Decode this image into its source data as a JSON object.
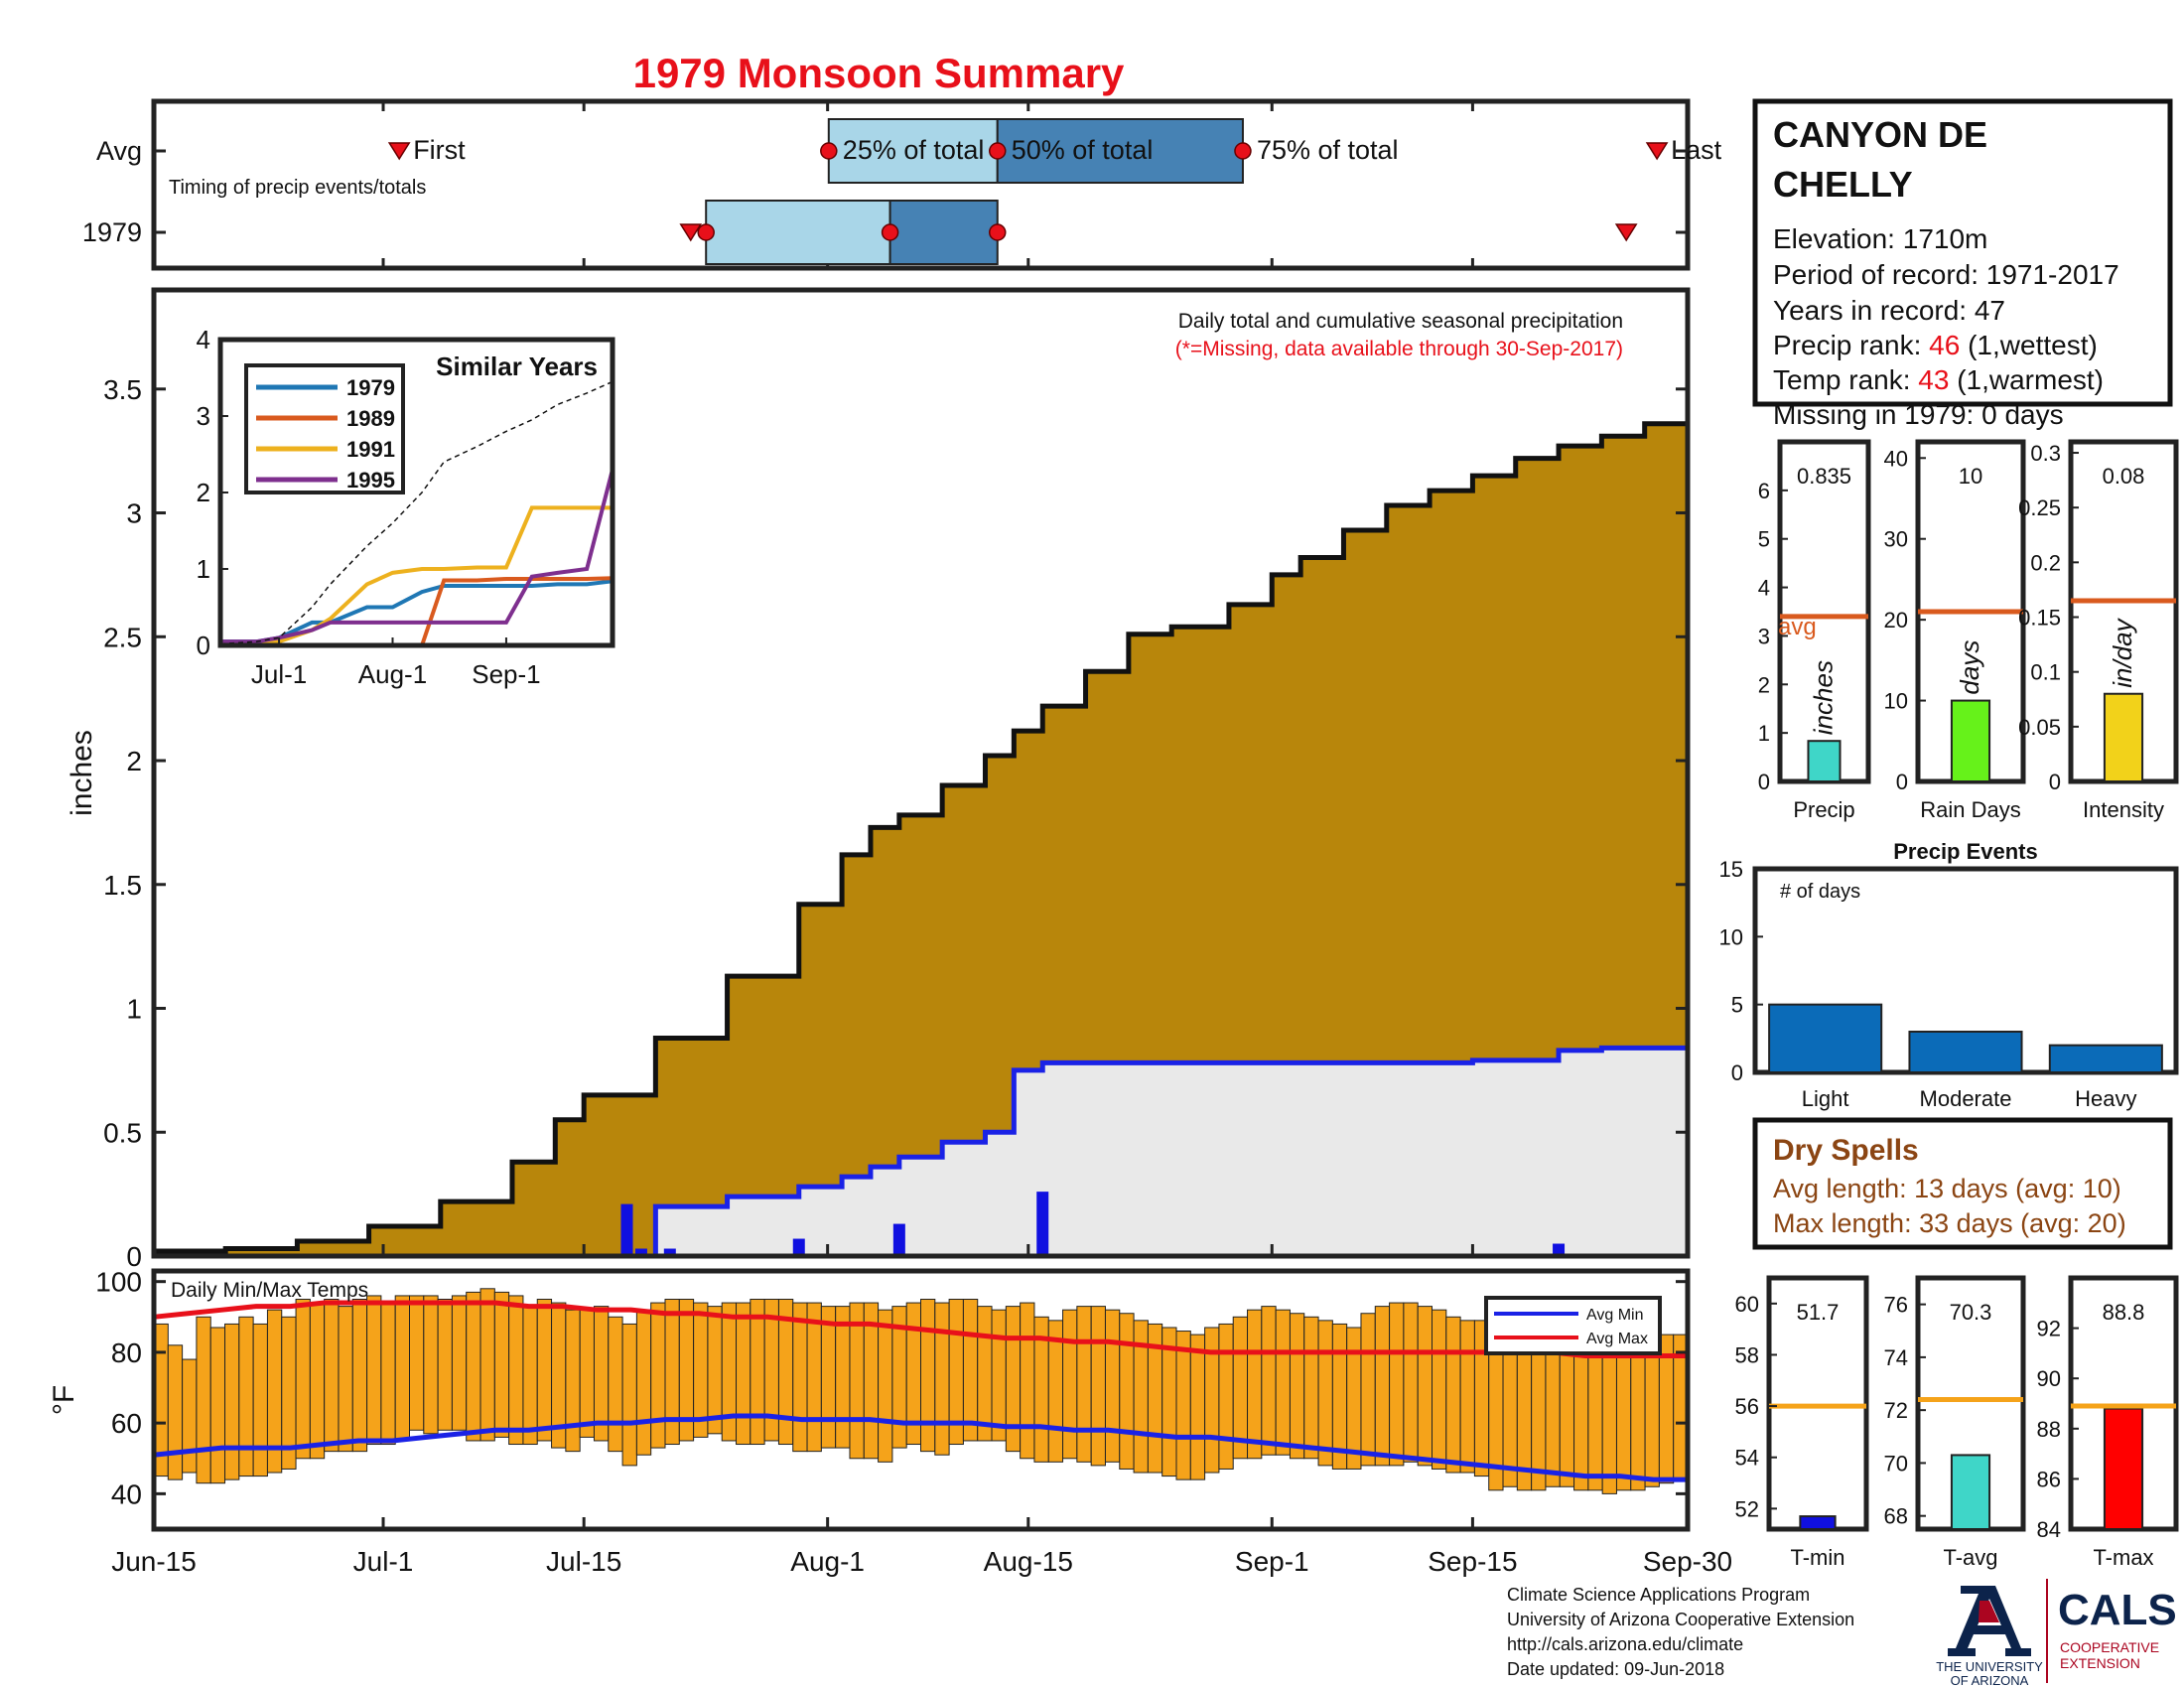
{
  "title": "1979 Monsoon Summary",
  "colors": {
    "title_red": "#e8101a",
    "cumulative_fill": "#b8860b",
    "year_fill": "#e9e9e9",
    "year_line": "#1a22e6",
    "daily_bar": "#1010e0",
    "temp_bar": "#f5a31a",
    "avg_min": "#1a22e6",
    "avg_max": "#e8101a",
    "light_blue": "#a9d6e8",
    "mid_blue": "#4682b4",
    "avg_line_orange": "#d95a1e",
    "temp_avg_orange": "#f5a31a"
  },
  "timing": {
    "row_labels": [
      "Avg",
      "1979"
    ],
    "caption": "Timing of precip events/totals",
    "first_label": "First",
    "last_label": "Last",
    "pct25_label": "25% of total",
    "pct50_label": "50% of total",
    "pct75_label": "75% of total",
    "avg": {
      "first": 16,
      "p25": 44,
      "p50": 55,
      "p75": 71,
      "last": 98
    },
    "y1979": {
      "first": 35,
      "p25": 36,
      "p50": 48,
      "p75": 55,
      "last": 96
    }
  },
  "station": {
    "name_line1": "CANYON DE",
    "name_line2": "CHELLY",
    "elevation": "Elevation: 1710m",
    "period": "Period of record: 1971-2017",
    "years": "Years in record: 47",
    "precip_rank_label": "Precip rank: ",
    "precip_rank_value": "46",
    "precip_rank_note": " (1,wettest)",
    "temp_rank_label": "Temp rank: ",
    "temp_rank_value": "43",
    "temp_rank_note": " (1,warmest)",
    "missing": "Missing in 1979: 0 days"
  },
  "main_chart": {
    "ylabel": "inches",
    "note_line1": "Daily total and cumulative seasonal precipitation",
    "note_line2": "(*=Missing, data available through 30-Sep-2017)",
    "yticks": [
      "0",
      "0.5",
      "1",
      "1.5",
      "2",
      "2.5",
      "3",
      "3.5"
    ],
    "xticks": [
      "Jun-15",
      "Jul-1",
      "Jul-15",
      "Aug-1",
      "Aug-15",
      "Sep-1",
      "Sep-15",
      "Sep-30"
    ],
    "xtick_days": [
      0,
      16,
      30,
      47,
      61,
      78,
      92,
      107
    ],
    "ylim": [
      0,
      3.9
    ]
  },
  "chart_data": [
    {
      "type": "area",
      "title": "",
      "xlabel": "",
      "ylabel": "inches",
      "x_days_since_jun15": [
        0,
        5,
        10,
        15,
        20,
        25,
        28,
        30,
        35,
        40,
        45,
        48,
        50,
        52,
        55,
        58,
        60,
        62,
        65,
        68,
        71,
        75,
        78,
        80,
        83,
        86,
        89,
        92,
        95,
        98,
        101,
        104,
        107
      ],
      "series": [
        {
          "name": "",
          "values": [
            0.02,
            0.03,
            0.06,
            0.12,
            0.22,
            0.38,
            0.55,
            0.65,
            0.88,
            1.13,
            1.42,
            1.62,
            1.73,
            1.78,
            1.9,
            2.02,
            2.12,
            2.22,
            2.36,
            2.51,
            2.54,
            2.63,
            2.75,
            2.82,
            2.93,
            3.03,
            3.09,
            3.15,
            3.22,
            3.27,
            3.31,
            3.36,
            3.41
          ]
        },
        {
          "name": "1979",
          "values": [
            0,
            0,
            0,
            0,
            0,
            0,
            0,
            0,
            0.2,
            0.24,
            0.28,
            0.32,
            0.36,
            0.4,
            0.46,
            0.5,
            0.75,
            0.78,
            0.78,
            0.78,
            0.78,
            0.78,
            0.78,
            0.78,
            0.78,
            0.78,
            0.78,
            0.79,
            0.79,
            0.83,
            0.84,
            0.84,
            0.84
          ]
        }
      ],
      "daily_bars": {
        "days": [
          33,
          34,
          36,
          45,
          52,
          62,
          98
        ],
        "values": [
          0.21,
          0.03,
          0.03,
          0.07,
          0.13,
          0.26,
          0.05
        ]
      }
    },
    {
      "type": "line",
      "title": "Similar Years",
      "xticks": [
        "Jul-1",
        "Aug-1",
        "Sep-1"
      ],
      "yticks": [
        "0",
        "1",
        "2",
        "3",
        "4"
      ],
      "ylim": [
        0,
        4
      ],
      "x_days_since_jun15": [
        0,
        10,
        16,
        25,
        30,
        40,
        47,
        55,
        61,
        70,
        78,
        85,
        92,
        100,
        107
      ],
      "series": [
        {
          "name": "1979",
          "values": [
            0.05,
            0.05,
            0.1,
            0.3,
            0.3,
            0.5,
            0.5,
            0.7,
            0.78,
            0.78,
            0.78,
            0.78,
            0.8,
            0.8,
            0.84
          ]
        },
        {
          "name": "1989",
          "values": [
            0.0,
            0.0,
            0.0,
            0.0,
            0.0,
            0.0,
            0.0,
            0.0,
            0.85,
            0.85,
            0.87,
            0.87,
            0.87,
            0.87,
            0.88
          ]
        },
        {
          "name": "1991",
          "values": [
            0.0,
            0.0,
            0.05,
            0.2,
            0.35,
            0.8,
            0.95,
            1.0,
            1.0,
            1.02,
            1.02,
            1.8,
            1.8,
            1.8,
            1.8
          ]
        },
        {
          "name": "1995",
          "values": [
            0.05,
            0.05,
            0.1,
            0.2,
            0.3,
            0.3,
            0.3,
            0.3,
            0.3,
            0.3,
            0.3,
            0.9,
            0.95,
            1.0,
            2.3
          ]
        },
        {
          "name": "",
          "values": [
            0.02,
            0.05,
            0.1,
            0.5,
            0.8,
            1.3,
            1.6,
            2.0,
            2.4,
            2.6,
            2.8,
            2.95,
            3.15,
            3.3,
            3.45
          ]
        }
      ]
    },
    {
      "type": "bar",
      "title": "Daily Min/Max Temps",
      "ylabel": "°F",
      "yticks": [
        "40",
        "60",
        "80",
        "100"
      ],
      "ylim": [
        30,
        103
      ],
      "tmax": [
        88,
        82,
        78,
        90,
        87,
        88,
        90,
        88,
        92,
        90,
        95,
        94,
        95,
        93,
        95,
        96,
        94,
        96,
        96,
        96,
        95,
        96,
        97,
        98,
        97,
        96,
        93,
        95,
        94,
        92,
        92,
        93,
        90,
        88,
        92,
        94,
        95,
        95,
        94,
        93,
        94,
        94,
        95,
        95,
        95,
        94,
        94,
        93,
        93,
        94,
        94,
        92,
        93,
        94,
        95,
        94,
        95,
        95,
        93,
        92,
        93,
        94,
        90,
        89,
        92,
        93,
        93,
        92,
        91,
        89,
        88,
        87,
        86,
        85,
        87,
        88,
        90,
        92,
        93,
        92,
        91,
        90,
        89,
        88,
        87,
        91,
        93,
        94,
        94,
        93,
        92,
        90,
        89,
        89,
        89,
        89,
        89,
        90,
        86,
        85,
        85,
        85,
        84,
        86,
        87,
        88,
        85,
        85
      ],
      "tmin": [
        45,
        44,
        46,
        43,
        43,
        44,
        45,
        45,
        46,
        47,
        50,
        50,
        52,
        52,
        52,
        54,
        54,
        55,
        58,
        57,
        58,
        58,
        55,
        55,
        56,
        54,
        54,
        55,
        53,
        52,
        56,
        55,
        52,
        48,
        51,
        53,
        54,
        55,
        56,
        57,
        55,
        54,
        54,
        55,
        54,
        52,
        52,
        53,
        53,
        50,
        50,
        49,
        53,
        54,
        52,
        51,
        54,
        55,
        55,
        55,
        52,
        50,
        49,
        49,
        50,
        49,
        48,
        49,
        47,
        46,
        46,
        45,
        44,
        44,
        46,
        47,
        50,
        50,
        51,
        51,
        50,
        50,
        48,
        47,
        47,
        48,
        48,
        48,
        49,
        48,
        47,
        46,
        46,
        45,
        41,
        42,
        41,
        41,
        42,
        42,
        41,
        41,
        40,
        41,
        41,
        42,
        43,
        44
      ],
      "avg_min": [
        51,
        52,
        53,
        53,
        53,
        54,
        55,
        55,
        56,
        57,
        58,
        58,
        59,
        60,
        60,
        61,
        61,
        62,
        62,
        61,
        61,
        61,
        60,
        60,
        60,
        59,
        59,
        58,
        58,
        57,
        56,
        56,
        55,
        54,
        53,
        52,
        51,
        50,
        49,
        48,
        47,
        46,
        45,
        45,
        44,
        44
      ],
      "avg_max": [
        90,
        91,
        92,
        93,
        93,
        94,
        94,
        94,
        94,
        94,
        94,
        93,
        93,
        92,
        92,
        91,
        91,
        90,
        90,
        89,
        88,
        88,
        87,
        86,
        85,
        84,
        84,
        83,
        83,
        82,
        81,
        80,
        80,
        80,
        80,
        80,
        80,
        80,
        80,
        80,
        80,
        80,
        79,
        79,
        79,
        79
      ],
      "legend": [
        "Avg Min",
        "Avg Max"
      ]
    },
    {
      "type": "bar",
      "title": "",
      "categories": [
        "Precip",
        "Rain Days",
        "Intensity"
      ],
      "values": [
        0.835,
        10,
        0.08
      ],
      "avg_values": [
        3.4,
        21,
        0.165
      ],
      "units": [
        "inches",
        "days",
        "in/day"
      ],
      "ylims": [
        [
          0,
          7
        ],
        [
          0,
          42
        ],
        [
          0,
          0.31
        ]
      ],
      "bar_colors": [
        "#3fd6c8",
        "#66f21a",
        "#f2d21a"
      ]
    },
    {
      "type": "bar",
      "title": "Precip Events",
      "ylabel": "# of days",
      "categories": [
        "Light",
        "Moderate",
        "Heavy"
      ],
      "values": [
        5,
        3,
        2
      ],
      "ylim": [
        0,
        15
      ]
    },
    {
      "type": "bar",
      "title": "",
      "categories": [
        "T-min",
        "T-avg",
        "T-max"
      ],
      "values": [
        51.7,
        70.3,
        88.8
      ],
      "avg_values": [
        56.0,
        72.4,
        88.9
      ],
      "ylims": [
        [
          51.2,
          61.0
        ],
        [
          67.5,
          77.0
        ],
        [
          84.0,
          94.0
        ]
      ],
      "bar_colors": [
        "#1010e0",
        "#3fd6c8",
        "#ff0000"
      ]
    }
  ],
  "small_panels": {
    "precip": {
      "value_label": "0.835",
      "unit": "inches",
      "label": "Precip",
      "avg_label": "avg",
      "yticks": [
        "0",
        "1",
        "2",
        "3",
        "4",
        "5",
        "6"
      ]
    },
    "raindays": {
      "value_label": "10",
      "unit": "days",
      "label": "Rain Days",
      "yticks": [
        "0",
        "10",
        "20",
        "30",
        "40"
      ]
    },
    "intensity": {
      "value_label": "0.08",
      "unit": "in/day",
      "label": "Intensity",
      "yticks": [
        "0",
        "0.05",
        "0.1",
        "0.15",
        "0.2",
        "0.25",
        "0.3"
      ]
    },
    "events": {
      "title": "Precip Events",
      "ylabel": "# of days",
      "labels": [
        "Light",
        "Moderate",
        "Heavy"
      ],
      "yticks": [
        "0",
        "5",
        "10",
        "15"
      ]
    },
    "tmin": {
      "value_label": "51.7",
      "label": "T-min",
      "yticks": [
        "52",
        "54",
        "56",
        "58",
        "60"
      ]
    },
    "tavg": {
      "value_label": "70.3",
      "label": "T-avg",
      "yticks": [
        "68",
        "70",
        "72",
        "74",
        "76"
      ]
    },
    "tmax": {
      "value_label": "88.8",
      "label": "T-max",
      "yticks": [
        "84",
        "86",
        "88",
        "90",
        "92"
      ]
    }
  },
  "dry_spells": {
    "title": "Dry Spells",
    "avg": "Avg length: 13 days (avg: 10)",
    "max": "Max length: 33 days (avg: 20)"
  },
  "footer": {
    "line1": "Climate Science Applications Program",
    "line2": "University of Arizona Cooperative Extension",
    "line3": "http://cals.arizona.edu/climate",
    "line4": " Date updated: 09-Jun-2018",
    "ua_line1": "THE UNIVERSITY",
    "ua_line2": "OF ARIZONA",
    "cals": "CALS",
    "cals_line1": "COOPERATIVE",
    "cals_line2": "EXTENSION"
  }
}
